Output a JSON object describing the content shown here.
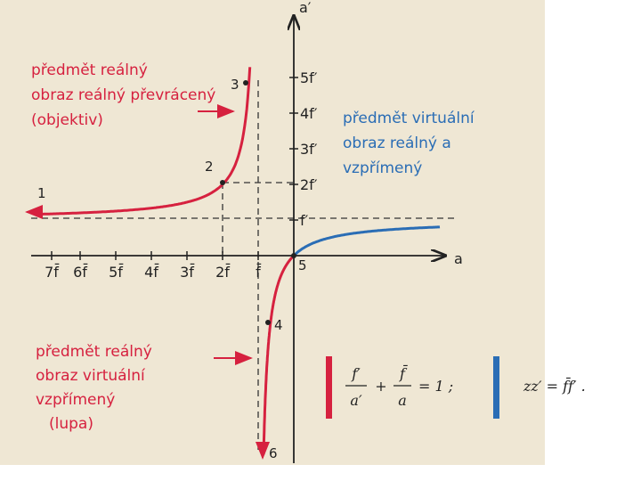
{
  "axes": {
    "x_label": "a",
    "y_label": "a′",
    "x_ticks": [
      "7f̄",
      "6f̄",
      "5f̄",
      "4f̄",
      "3f̄",
      "2f̄",
      "f̄"
    ],
    "y_ticks": [
      "f′",
      "2f′",
      "3f′",
      "4f′",
      "5f′"
    ]
  },
  "points": [
    "1",
    "2",
    "3",
    "4",
    "5",
    "6"
  ],
  "annotations": {
    "objective": [
      "předmět reálný",
      "obraz reálný převrácený",
      "(objektiv)"
    ],
    "virtual_object": [
      "předmět virtuální",
      "obraz reálný a",
      "vzpřímený"
    ],
    "magnifier": [
      "předmět reálný",
      "obraz virtuální",
      "vzpřímený",
      "(lupa)"
    ]
  },
  "formulas": {
    "lens": {
      "num1": "f′",
      "den1": "a′",
      "op": "+",
      "num2": "f̄",
      "den2": "a",
      "rhs": "= 1 ;"
    },
    "newton": "zz′ = f̄f′ ."
  }
}
